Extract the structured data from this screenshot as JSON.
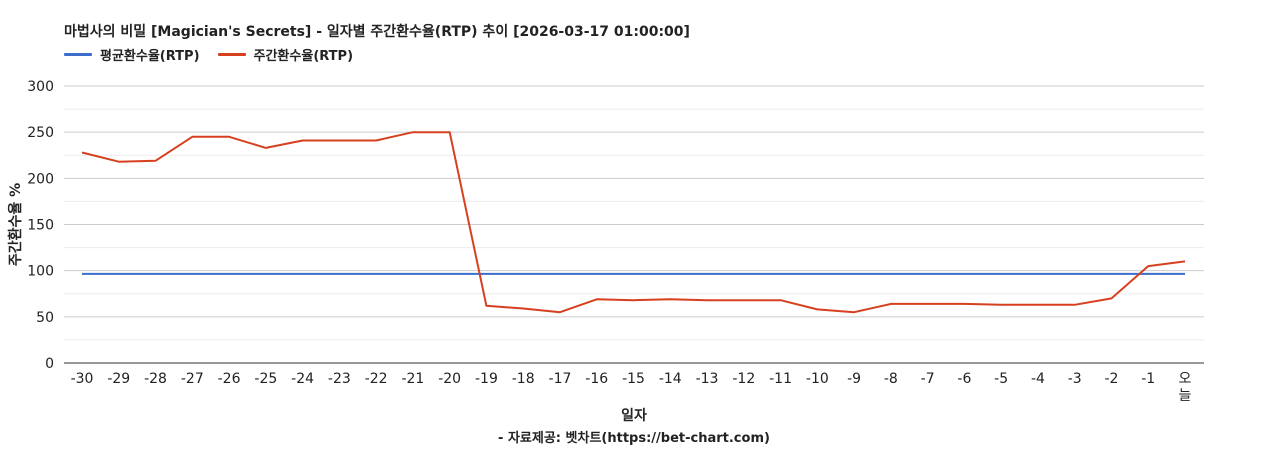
{
  "chart_data": {
    "type": "line",
    "title": "마법사의 비밀 [Magician's Secrets] - 일자별 주간환수율(RTP) 추이 [2026-03-17 01:00:00]",
    "xlabel": "일자",
    "ylabel": "주간환수율 %",
    "footer": "- 자료제공: 벳차트(https://bet-chart.com)",
    "legend_position": "top-left",
    "grid": true,
    "ylim": [
      0,
      300
    ],
    "yticks": [
      "0",
      "50",
      "100",
      "150",
      "200",
      "250",
      "300"
    ],
    "categories": [
      "-30",
      "-29",
      "-28",
      "-27",
      "-26",
      "-25",
      "-24",
      "-23",
      "-22",
      "-21",
      "-20",
      "-19",
      "-18",
      "-17",
      "-16",
      "-15",
      "-14",
      "-13",
      "-12",
      "-11",
      "-10",
      "-9",
      "-8",
      "-7",
      "-6",
      "-5",
      "-4",
      "-3",
      "-2",
      "-1",
      "오늘"
    ],
    "series": [
      {
        "name": "평균환수율(RTP)",
        "color": "#3c6ccc",
        "values": [
          96.5,
          96.5,
          96.5,
          96.5,
          96.5,
          96.5,
          96.5,
          96.5,
          96.5,
          96.5,
          96.5,
          96.5,
          96.5,
          96.5,
          96.5,
          96.5,
          96.5,
          96.5,
          96.5,
          96.5,
          96.5,
          96.5,
          96.5,
          96.5,
          96.5,
          96.5,
          96.5,
          96.5,
          96.5,
          96.5,
          96.5
        ]
      },
      {
        "name": "주간환수율(RTP)",
        "color": "#d6401f",
        "values": [
          228,
          218,
          219,
          245,
          245,
          233,
          241,
          241,
          241,
          250,
          250,
          62,
          59,
          55,
          69,
          68,
          69,
          68,
          68,
          68,
          58,
          55,
          64,
          64,
          64,
          63,
          63,
          63,
          70,
          105,
          110
        ]
      }
    ]
  }
}
